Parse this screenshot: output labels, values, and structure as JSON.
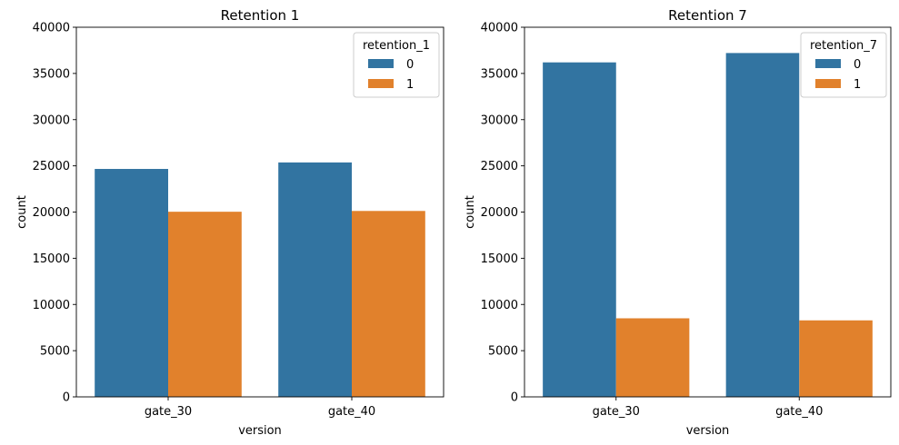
{
  "chart_data": [
    {
      "type": "bar",
      "title": "Retention 1",
      "xlabel": "version",
      "ylabel": "count",
      "categories": [
        "gate_30",
        "gate_40"
      ],
      "ylim": [
        0,
        40000
      ],
      "yticks": [
        0,
        5000,
        10000,
        15000,
        20000,
        25000,
        30000,
        35000,
        40000
      ],
      "grid": false,
      "legend": {
        "title": "retention_1",
        "placement": "upper-right"
      },
      "series": [
        {
          "name": "0",
          "color": "#3274a1",
          "values": [
            24666,
            25370
          ]
        },
        {
          "name": "1",
          "color": "#e1812c",
          "values": [
            20034,
            20119
          ]
        }
      ]
    },
    {
      "type": "bar",
      "title": "Retention 7",
      "xlabel": "version",
      "ylabel": "count",
      "categories": [
        "gate_30",
        "gate_40"
      ],
      "ylim": [
        0,
        40000
      ],
      "yticks": [
        0,
        5000,
        10000,
        15000,
        20000,
        25000,
        30000,
        35000,
        40000
      ],
      "grid": false,
      "legend": {
        "title": "retention_7",
        "placement": "upper-right"
      },
      "series": [
        {
          "name": "0",
          "color": "#3274a1",
          "values": [
            36198,
            37210
          ]
        },
        {
          "name": "1",
          "color": "#e1812c",
          "values": [
            8502,
            8279
          ]
        }
      ]
    }
  ]
}
